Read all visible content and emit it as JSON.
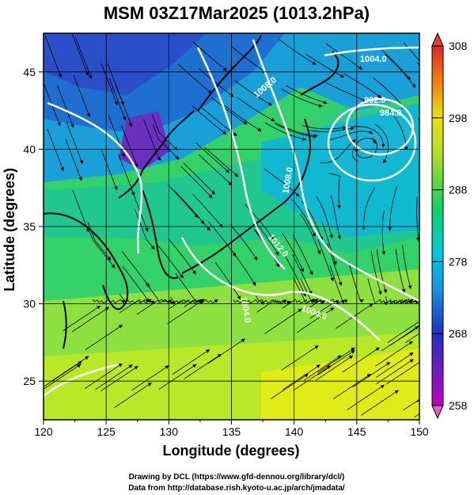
{
  "title": "MSM 03Z17Mar2025 (1013.2hPa)",
  "x_axis": {
    "label": "Longitude (degrees)",
    "range": [
      120,
      150
    ],
    "ticks": [
      "120",
      "125",
      "130",
      "135",
      "140",
      "145",
      "150"
    ]
  },
  "y_axis": {
    "label": "Latitude  (degrees)",
    "range": [
      22.5,
      47.5
    ],
    "ticks": [
      "25",
      "30",
      "35",
      "40",
      "45"
    ]
  },
  "colorbar": {
    "ticks": [
      "258",
      "268",
      "278",
      "288",
      "298",
      "308"
    ],
    "range": [
      258,
      308
    ],
    "colors": [
      "#b000b0",
      "#2030c0",
      "#00c8e0",
      "#10d060",
      "#d8e810",
      "#f08010",
      "#e03030"
    ]
  },
  "isobar_labels": [
    "1004.0",
    "1008.0",
    "992.0",
    "984.0",
    "1012.0",
    "1004.0",
    "1008.0",
    "1004.0"
  ],
  "credits": {
    "line1": "Drawing by DCL (https://www.gfd-dennou.org/library/dcl/)",
    "line2": "Data from http://database.rish.kyoto-u.ac.jp/arch/jmadata/"
  },
  "colors": {
    "isobar": "#ffffff",
    "streamline": "#000000",
    "coast": "#000000",
    "grid": "#000000"
  }
}
